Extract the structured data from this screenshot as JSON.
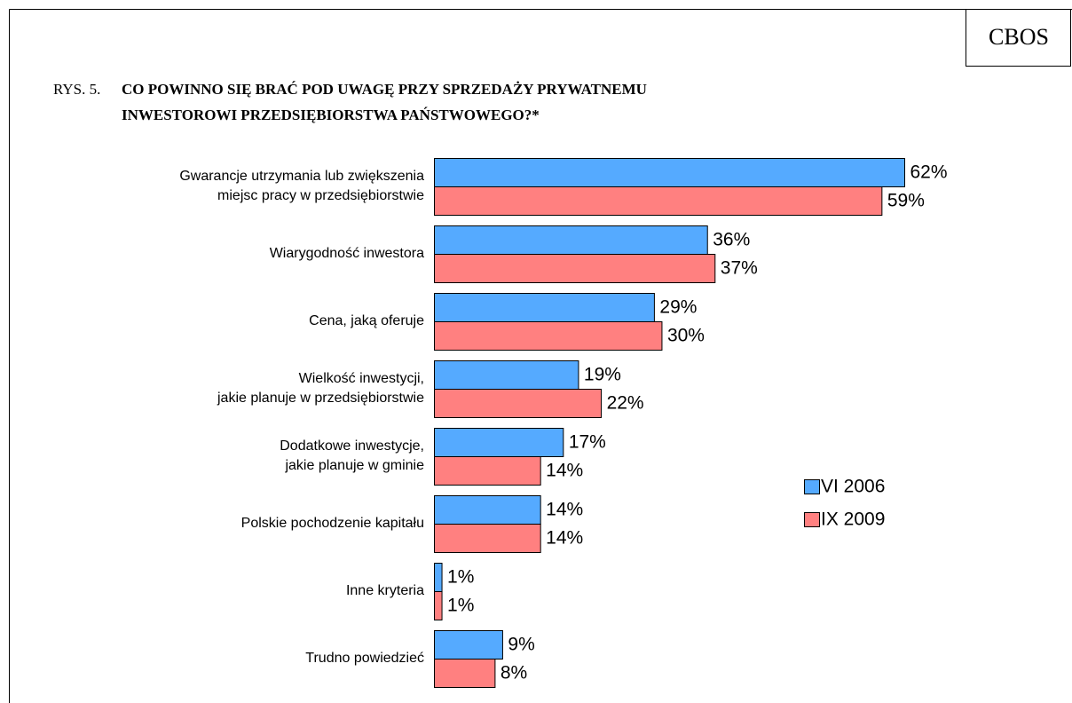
{
  "chart_data": {
    "type": "bar",
    "orientation": "horizontal",
    "badge": "CBOS",
    "title_prefix": "RYS. 5.",
    "title": [
      "CO POWINNO SIĘ BRAĆ POD UWAGĘ PRZY SPRZEDAŻY PRYWATNEMU",
      "INWESTOROWI PRZEDSIĘBIORSTWA PAŃSTWOWEGO?*"
    ],
    "categories": [
      [
        "Gwarancje utrzymania lub zwiększenia",
        "miejsc pracy w przedsiębiorstwie"
      ],
      [
        "Wiarygodność inwestora"
      ],
      [
        "Cena, jaką oferuje"
      ],
      [
        "Wielkość inwestycji,",
        "jakie planuje w przedsiębiorstwie"
      ],
      [
        "Dodatkowe inwestycje,",
        "jakie planuje w gminie"
      ],
      [
        "Polskie pochodzenie kapitału"
      ],
      [
        "Inne kryteria"
      ],
      [
        "Trudno powiedzieć"
      ]
    ],
    "series": [
      {
        "name": "VI 2006",
        "color": "#55aaff",
        "values": [
          62,
          36,
          29,
          19,
          17,
          14,
          1,
          9
        ],
        "value_labels": [
          "62%",
          "36%",
          "29%",
          "19%",
          "17%",
          "14%",
          "1%",
          "9%"
        ]
      },
      {
        "name": "IX 2009",
        "color": "#ff8080",
        "values": [
          59,
          37,
          30,
          22,
          14,
          14,
          1,
          8
        ],
        "value_labels": [
          "59%",
          "37%",
          "30%",
          "22%",
          "14%",
          "14%",
          "1%",
          "8%"
        ]
      }
    ],
    "legend": "right"
  }
}
